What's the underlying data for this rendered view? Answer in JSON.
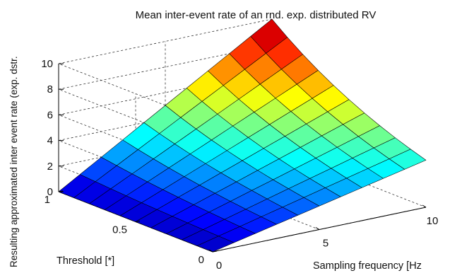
{
  "chart_data": {
    "type": "surface",
    "title": "Mean inter-event rate of an rnd. exp. distributed RV",
    "xlabel": "Sampling frequency [Hz",
    "ylabel": "Threshold [*]",
    "zlabel": "Resulting approximated inter event rate (exp. dstr.",
    "xlim": [
      0,
      10
    ],
    "ylim": [
      0,
      1
    ],
    "zlim": [
      0,
      10
    ],
    "x_ticks": [
      "0",
      "5",
      "10"
    ],
    "y_ticks": [
      "0",
      "0.5",
      "1"
    ],
    "z_ticks": [
      "0",
      "2",
      "4",
      "6",
      "8",
      "10"
    ],
    "grid": true,
    "colormap": "jet",
    "x": [
      0,
      1,
      2,
      3,
      4,
      5,
      6,
      7,
      8,
      9,
      10
    ],
    "y": [
      0,
      0.1,
      0.2,
      0.3,
      0.4,
      0.5,
      0.6,
      0.7,
      0.8,
      0.9,
      1.0
    ],
    "z_model": "z = x * exp(-(1 - y)) approximated: z(x=10,y=0)=3.7, z(x=10,y=1)=10"
  }
}
